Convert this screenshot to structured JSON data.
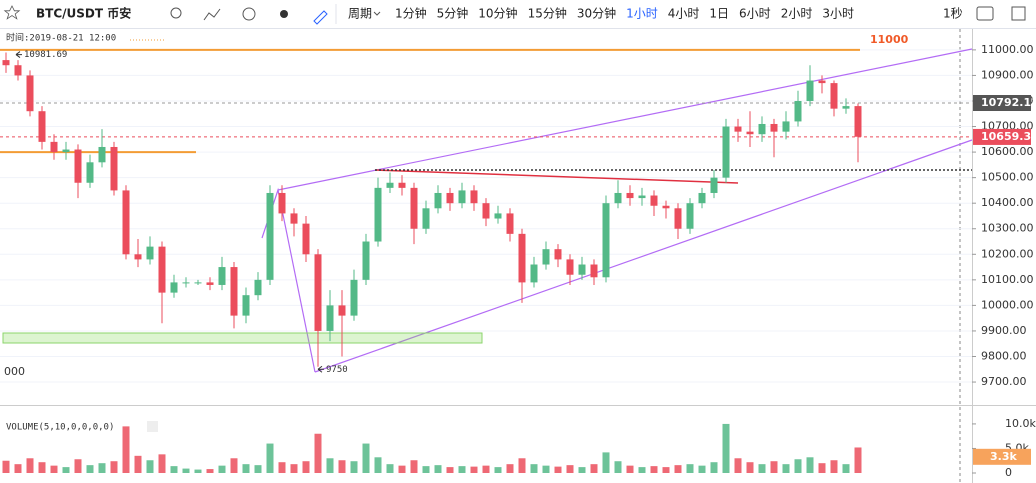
{
  "toolbar": {
    "symbol": "BTC/USDT 币安",
    "period": "周期",
    "intervals": [
      "1分钟",
      "5分钟",
      "10分钟",
      "15分钟",
      "30分钟",
      "1小时",
      "4小时",
      "1日",
      "6小时",
      "2小时",
      "3小时"
    ],
    "active": "1小时",
    "right": "1秒"
  },
  "chart_data": {
    "type": "candlestick",
    "time_label": "时间:2019-08-21 12:00",
    "volume_title": "VOLUME(5,10,0,0,0,0)",
    "edge_label": "000",
    "up_color": "#53b987",
    "down_color": "#eb4d5c",
    "ylim": [
      9618,
      11070
    ],
    "yticks": [
      {
        "value": 9700,
        "label": "9700.00"
      },
      {
        "value": 9800,
        "label": "9800.00"
      },
      {
        "value": 9900,
        "label": "9900.00"
      },
      {
        "value": 10000,
        "label": "10000.00"
      },
      {
        "value": 10100,
        "label": "10100.00"
      },
      {
        "value": 10200,
        "label": "10200.00"
      },
      {
        "value": 10300,
        "label": "10300.00"
      },
      {
        "value": 10400,
        "label": "10400.00"
      },
      {
        "value": 10500,
        "label": "10500.00"
      },
      {
        "value": 10600,
        "label": "10600.00"
      },
      {
        "value": 10700,
        "label": "10700.00"
      },
      {
        "value": 10800,
        "label": "10800.00"
      },
      {
        "value": 10900,
        "label": "10900.00"
      },
      {
        "value": 11000,
        "label": "11000.00"
      }
    ],
    "grid": true,
    "open": [
      10960,
      10940,
      10900,
      10760,
      10640,
      10600,
      10610,
      10480,
      10560,
      10620,
      10450,
      10200,
      10180,
      10230,
      10050,
      10090,
      10090,
      10090,
      10080,
      10150,
      9960,
      10040,
      10100,
      10440,
      10360,
      10320,
      10200,
      9900,
      10000,
      9960,
      10100,
      10250,
      10460,
      10480,
      10460,
      10300,
      10380,
      10440,
      10400,
      10450,
      10400,
      10340,
      10360,
      10280,
      10090,
      10160,
      10220,
      10180,
      10120,
      10160,
      10110,
      10400,
      10440,
      10420,
      10430,
      10390,
      10380,
      10300,
      10400,
      10440,
      10500,
      10700,
      10680,
      10670,
      10710,
      10680,
      10720,
      10800,
      10880,
      10870,
      10770,
      10780
    ],
    "high": [
      10990,
      10960,
      10920,
      10780,
      10670,
      10640,
      10630,
      10590,
      10690,
      10640,
      10470,
      10260,
      10270,
      10250,
      10120,
      10110,
      10100,
      10110,
      10190,
      10170,
      10070,
      10130,
      10470,
      10470,
      10380,
      10350,
      10220,
      10060,
      10060,
      10140,
      10280,
      10500,
      10520,
      10510,
      10480,
      10410,
      10470,
      10460,
      10480,
      10470,
      10420,
      10390,
      10380,
      10300,
      10190,
      10250,
      10240,
      10200,
      10190,
      10180,
      10430,
      10490,
      10470,
      10460,
      10450,
      10410,
      10400,
      10420,
      10460,
      10530,
      10730,
      10730,
      10760,
      10740,
      10730,
      10760,
      10840,
      10940,
      10900,
      10880,
      10810,
      10790
    ],
    "low": [
      10910,
      10880,
      10740,
      10610,
      10570,
      10570,
      10420,
      10460,
      10540,
      10430,
      10180,
      10150,
      10160,
      9930,
      10030,
      10070,
      10080,
      10060,
      10060,
      9910,
      9930,
      10020,
      10080,
      10330,
      10270,
      10170,
      9760,
      9860,
      9800,
      9940,
      10080,
      10230,
      10440,
      10430,
      10240,
      10280,
      10360,
      10370,
      10380,
      10370,
      10310,
      10320,
      10250,
      10010,
      10070,
      10140,
      10150,
      10080,
      10100,
      10080,
      10090,
      10380,
      10390,
      10390,
      10350,
      10340,
      10260,
      10280,
      10380,
      10420,
      10480,
      10640,
      10620,
      10640,
      10580,
      10650,
      10700,
      10780,
      10830,
      10740,
      10750,
      10560
    ],
    "close": [
      10940,
      10900,
      10760,
      10640,
      10600,
      10610,
      10480,
      10560,
      10620,
      10450,
      10200,
      10180,
      10230,
      10050,
      10090,
      10090,
      10090,
      10080,
      10150,
      9960,
      10040,
      10100,
      10440,
      10360,
      10320,
      10200,
      9900,
      10000,
      9960,
      10100,
      10250,
      10460,
      10480,
      10460,
      10300,
      10380,
      10440,
      10400,
      10450,
      10400,
      10340,
      10360,
      10280,
      10090,
      10160,
      10220,
      10180,
      10120,
      10160,
      10110,
      10400,
      10440,
      10420,
      10430,
      10390,
      10380,
      10300,
      10400,
      10440,
      10500,
      10700,
      10680,
      10670,
      10710,
      10680,
      10720,
      10800,
      10880,
      10870,
      10770,
      10780,
      10660
    ],
    "volume": [
      2500,
      1800,
      3000,
      2200,
      1500,
      1200,
      2800,
      1600,
      2000,
      2400,
      9500,
      3500,
      2600,
      3800,
      1400,
      900,
      700,
      800,
      1500,
      3000,
      1800,
      1600,
      6000,
      2200,
      1800,
      2400,
      8000,
      3000,
      2600,
      2400,
      6000,
      3200,
      1800,
      1500,
      2600,
      1400,
      1600,
      1200,
      1400,
      1300,
      1500,
      1200,
      1800,
      3000,
      1800,
      1500,
      1300,
      1600,
      1200,
      1800,
      4200,
      2400,
      1500,
      1200,
      1400,
      1200,
      1600,
      1800,
      1500,
      2200,
      10000,
      3000,
      2200,
      1800,
      2400,
      1800,
      2800,
      3200,
      2000,
      2600,
      1800,
      5200
    ],
    "vylim": [
      0,
      10800
    ],
    "vyticks": [
      {
        "value": 10000,
        "label": "10.0k"
      },
      {
        "value": 5000,
        "label": "5.0k"
      },
      0
    ],
    "volume_current": {
      "value": 3300,
      "label": "3.3k"
    },
    "level_high": {
      "value": 11000,
      "label": "11000"
    },
    "level_support": 10600,
    "level_dotted": 10530,
    "marker_high": {
      "value": 10981.69,
      "label": "10981.69"
    },
    "marker_low": 9750,
    "price_mark": 10792.11,
    "price_last": 10659.32
  }
}
